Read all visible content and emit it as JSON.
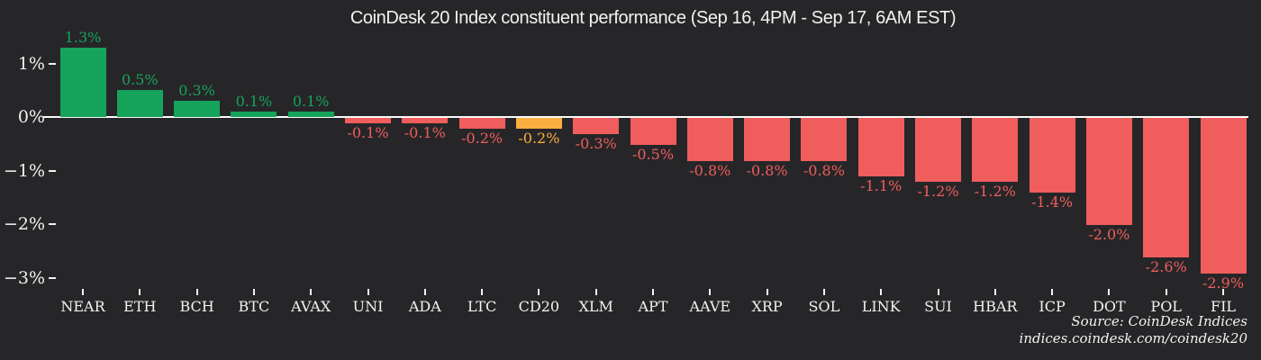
{
  "title": "CoinDesk 20 Index constituent performance (Sep 16, 4PM - Sep 17, 6AM EST)",
  "source": {
    "line1": "Source: CoinDesk Indices",
    "line2": "indices.coindesk.com/coindesk20"
  },
  "palette": {
    "background": "#262628",
    "positive": "#15a35c",
    "negative": "#f05d5d",
    "highlight": "#fbae40",
    "text": "#f2f2f2",
    "zero_line": "#fafafa"
  },
  "chart_data": {
    "type": "bar",
    "title": "CoinDesk 20 Index constituent performance (Sep 16, 4PM - Sep 17, 6AM EST)",
    "unit": "%",
    "categories": [
      "NEAR",
      "ETH",
      "BCH",
      "BTC",
      "AVAX",
      "UNI",
      "ADA",
      "LTC",
      "CD20",
      "XLM",
      "APT",
      "AAVE",
      "XRP",
      "SOL",
      "LINK",
      "SUI",
      "HBAR",
      "ICP",
      "DOT",
      "POL",
      "FIL"
    ],
    "values": [
      1.3,
      0.5,
      0.3,
      0.1,
      0.1,
      -0.1,
      -0.1,
      -0.2,
      -0.2,
      -0.3,
      -0.5,
      -0.8,
      -0.8,
      -0.8,
      -1.1,
      -1.2,
      -1.2,
      -1.4,
      -2.0,
      -2.6,
      -2.9
    ],
    "value_labels": [
      "1.3%",
      "0.5%",
      "0.3%",
      "0.1%",
      "0.1%",
      "-0.1%",
      "-0.1%",
      "-0.2%",
      "-0.2%",
      "-0.3%",
      "-0.5%",
      "-0.8%",
      "-0.8%",
      "-0.8%",
      "-1.1%",
      "-1.2%",
      "-1.2%",
      "-1.4%",
      "-2.0%",
      "-2.6%",
      "-2.9%"
    ],
    "bar_colors": [
      "#15a35c",
      "#15a35c",
      "#15a35c",
      "#15a35c",
      "#15a35c",
      "#f05d5d",
      "#f05d5d",
      "#f05d5d",
      "#fbae40",
      "#f05d5d",
      "#f05d5d",
      "#f05d5d",
      "#f05d5d",
      "#f05d5d",
      "#f05d5d",
      "#f05d5d",
      "#f05d5d",
      "#f05d5d",
      "#f05d5d",
      "#f05d5d",
      "#f05d5d"
    ],
    "highlighted_category": "CD20",
    "yticks": [
      {
        "value": 1,
        "label": "1%"
      },
      {
        "value": 0,
        "label": "0%"
      },
      {
        "value": -1,
        "label": "−1%"
      },
      {
        "value": -2,
        "label": "−2%"
      },
      {
        "value": -3,
        "label": "−3%"
      }
    ],
    "ylim": [
      -3.4,
      1.6
    ],
    "xlabel": "",
    "ylabel": "",
    "grid": false,
    "legend": null
  }
}
